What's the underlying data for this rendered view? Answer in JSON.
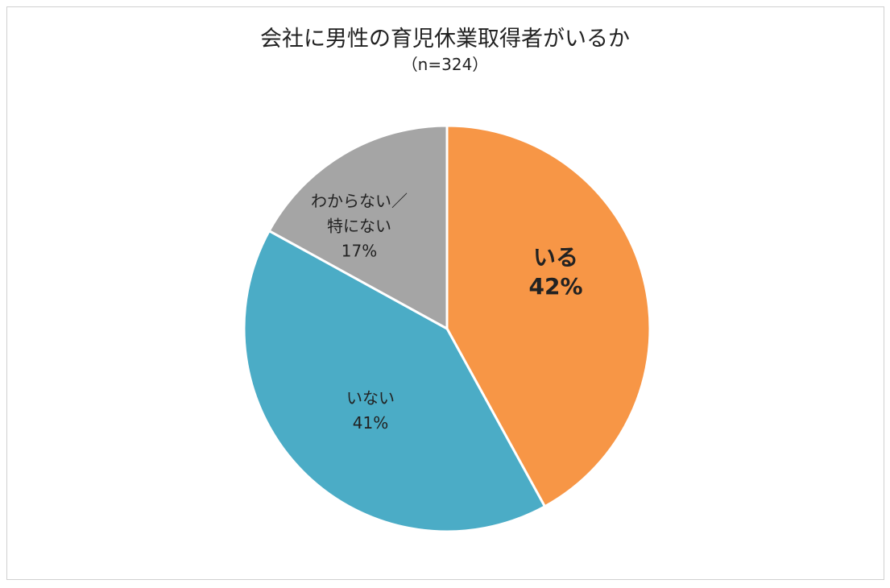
{
  "chart_data": {
    "type": "pie",
    "title": "会社に男性の育児休業取得者がいるか",
    "subtitle": "（n=324）",
    "categories": [
      "いる",
      "いない",
      "わからない／\n特にない"
    ],
    "values": [
      42,
      41,
      17
    ],
    "value_labels": [
      "42%",
      "41%",
      "17%"
    ],
    "colors": [
      "#f79646",
      "#4bacc6",
      "#a5a5a5"
    ]
  }
}
